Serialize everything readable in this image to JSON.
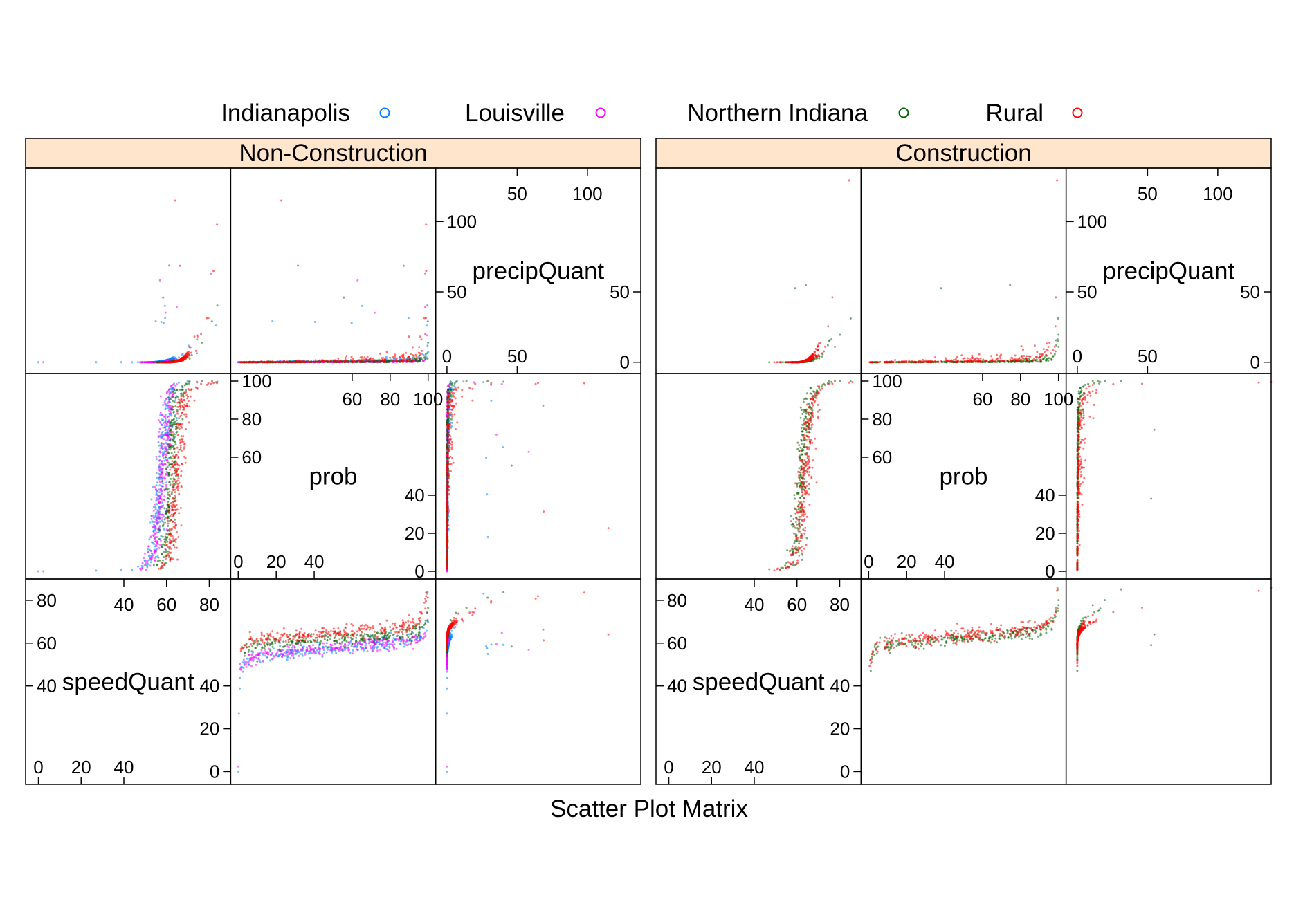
{
  "chart_data": {
    "type": "scatter",
    "variant": "scatter-plot-matrix",
    "xlabel": "Scatter Plot Matrix",
    "legend": {
      "placement": "top",
      "entries": [
        {
          "name": "Indianapolis",
          "color": "#0080ff"
        },
        {
          "name": "Louisville",
          "color": "#ff00ff"
        },
        {
          "name": "Northern Indiana",
          "color": "#006400"
        },
        {
          "name": "Rural",
          "color": "#ff0000"
        }
      ]
    },
    "strip_color": "#ffe5cc",
    "variables": [
      "speedQuant",
      "prob",
      "precipQuant"
    ],
    "variable_ranges": {
      "speedQuant": [
        -6,
        90
      ],
      "prob": [
        -4,
        104
      ],
      "precipQuant": [
        -8,
        138
      ]
    },
    "diag_ticks": {
      "speedQuant": {
        "low": [
          "0",
          "20",
          "40"
        ],
        "high": [
          "40",
          "60",
          "80"
        ],
        "left": [
          "40",
          "60",
          "80"
        ],
        "right": [
          "0",
          "20",
          "40"
        ]
      },
      "prob": {
        "low": [
          "0",
          "20",
          "40"
        ],
        "high": [
          "60",
          "80",
          "100"
        ],
        "left": [
          "60",
          "80",
          "100"
        ],
        "right": [
          "0",
          "20",
          "40"
        ]
      },
      "precipQuant": {
        "low": [
          "0",
          "50"
        ],
        "high": [
          "50",
          "100"
        ],
        "left": [
          "50",
          "100"
        ],
        "right": [
          "0",
          "50"
        ]
      }
    },
    "panels": [
      {
        "strip": "Non-Construction",
        "series": [
          {
            "name": "Indianapolis",
            "speed_at_prob": [
              [
                0,
                0
              ],
              [
                40,
                0.5
              ],
              [
                48,
                1.5
              ],
              [
                52,
                4
              ],
              [
                54,
                10
              ],
              [
                55,
                20
              ],
              [
                56,
                35
              ],
              [
                58,
                55
              ],
              [
                59.5,
                75
              ],
              [
                61,
                88
              ],
              [
                63,
                95
              ],
              [
                67,
                100
              ]
            ],
            "speed_threshold": 49,
            "precip_max": 52
          },
          {
            "name": "Louisville",
            "speed_at_prob": [
              [
                0,
                0
              ],
              [
                44,
                0.5
              ],
              [
                50,
                2
              ],
              [
                53,
                6
              ],
              [
                55,
                15
              ],
              [
                56.5,
                30
              ],
              [
                58,
                50
              ],
              [
                59.5,
                70
              ],
              [
                60.5,
                85
              ],
              [
                62,
                95
              ],
              [
                64,
                100
              ]
            ],
            "speed_threshold": 54,
            "precip_max": 60
          },
          {
            "name": "Northern Indiana",
            "speed_at_prob": [
              [
                0,
                0
              ],
              [
                50,
                0.5
              ],
              [
                56,
                2
              ],
              [
                58,
                6
              ],
              [
                60,
                15
              ],
              [
                61,
                30
              ],
              [
                62,
                50
              ],
              [
                63,
                70
              ],
              [
                64,
                85
              ],
              [
                66,
                95
              ],
              [
                72,
                100
              ]
            ],
            "speed_threshold": 57,
            "precip_max": 55
          },
          {
            "name": "Rural",
            "speed_at_prob": [
              [
                0,
                0
              ],
              [
                54,
                0.5
              ],
              [
                59,
                2
              ],
              [
                61,
                6
              ],
              [
                62.5,
                15
              ],
              [
                63.5,
                30
              ],
              [
                64.5,
                50
              ],
              [
                66,
                70
              ],
              [
                67,
                85
              ],
              [
                70,
                95
              ],
              [
                85,
                100
              ]
            ],
            "speed_threshold": 60,
            "precip_max": 120
          }
        ]
      },
      {
        "strip": "Construction",
        "series": [
          {
            "name": "Northern Indiana",
            "speed_at_prob": [
              [
                0,
                0
              ],
              [
                45,
                0.5
              ],
              [
                55,
                2
              ],
              [
                58,
                5
              ],
              [
                60,
                15
              ],
              [
                61.5,
                35
              ],
              [
                62.5,
                55
              ],
              [
                64,
                75
              ],
              [
                66,
                90
              ],
              [
                70,
                98
              ],
              [
                76,
                100
              ]
            ],
            "speed_threshold": 58,
            "precip_max": 58
          },
          {
            "name": "Rural",
            "speed_at_prob": [
              [
                0,
                0
              ],
              [
                48,
                0.5
              ],
              [
                56,
                2
              ],
              [
                59,
                5
              ],
              [
                61,
                15
              ],
              [
                62.5,
                35
              ],
              [
                64,
                55
              ],
              [
                65.5,
                75
              ],
              [
                67.5,
                90
              ],
              [
                72,
                98
              ],
              [
                85,
                100
              ]
            ],
            "speed_threshold": 58,
            "precip_max": 125
          }
        ]
      }
    ]
  }
}
